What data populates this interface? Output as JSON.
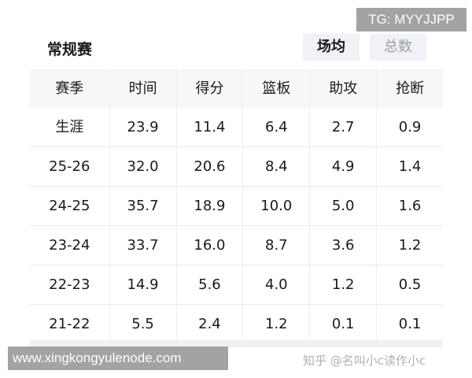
{
  "overlay_tag": "TG: MYYJJPP",
  "section_title": "常规赛",
  "toggle": {
    "per_game": "场均",
    "total": "总数",
    "active": "per_game"
  },
  "table": {
    "headers": [
      "赛季",
      "时间",
      "得分",
      "篮板",
      "助攻",
      "抢断"
    ],
    "rows": [
      [
        "生涯",
        "23.9",
        "11.4",
        "6.4",
        "2.7",
        "0.9"
      ],
      [
        "25-26",
        "32.0",
        "20.6",
        "8.4",
        "4.9",
        "1.4"
      ],
      [
        "24-25",
        "35.7",
        "18.9",
        "10.0",
        "5.0",
        "1.6"
      ],
      [
        "23-24",
        "33.7",
        "16.0",
        "8.7",
        "3.6",
        "1.2"
      ],
      [
        "22-23",
        "14.9",
        "5.6",
        "4.0",
        "1.2",
        "0.5"
      ],
      [
        "21-22",
        "5.5",
        "2.4",
        "1.2",
        "0.1",
        "0.1"
      ]
    ]
  },
  "watermark": "知乎 @名叫小c读作小c",
  "site_banner": "www.xingkongyulenode.com"
}
